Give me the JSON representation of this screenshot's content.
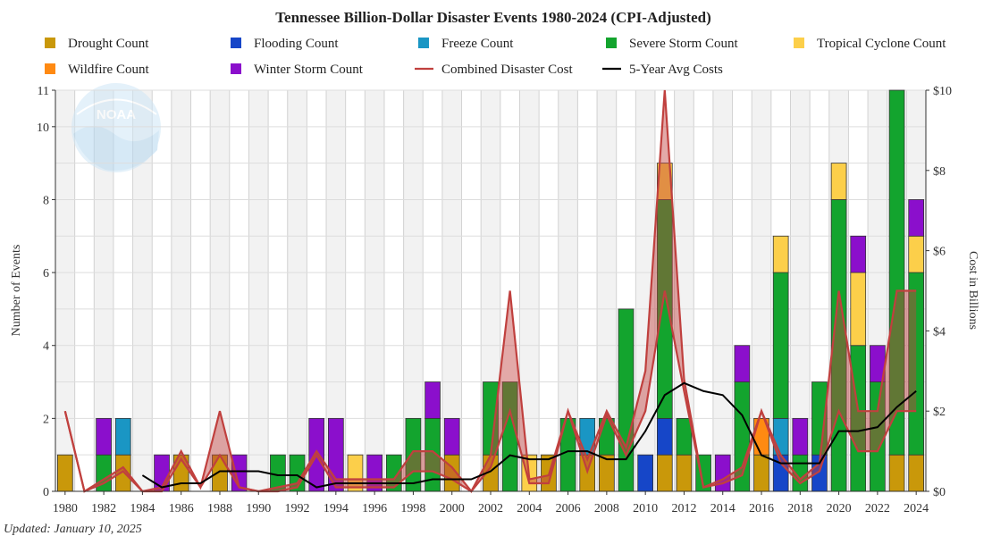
{
  "chart_data": {
    "type": "bar",
    "title": "Tennessee Billion-Dollar Disaster Events 1980-2024 (CPI-Adjusted)",
    "ylabel": "Number of Events",
    "y2label": "Cost in Billions",
    "ylim": [
      0,
      11
    ],
    "y2lim": [
      0,
      10
    ],
    "yticks": [
      0,
      2,
      4,
      6,
      8,
      10,
      11
    ],
    "y2ticks": [
      "$0",
      "$2",
      "$4",
      "$6",
      "$8",
      "$10"
    ],
    "updated": "Updated: January 10, 2025",
    "logo": "NOAA",
    "grid": true,
    "legend_position": "top",
    "x": [
      1980,
      1981,
      1982,
      1983,
      1984,
      1985,
      1986,
      1987,
      1988,
      1989,
      1990,
      1991,
      1992,
      1993,
      1994,
      1995,
      1996,
      1997,
      1998,
      1999,
      2000,
      2001,
      2002,
      2003,
      2004,
      2005,
      2006,
      2007,
      2008,
      2009,
      2010,
      2011,
      2012,
      2013,
      2014,
      2015,
      2016,
      2017,
      2018,
      2019,
      2020,
      2021,
      2022,
      2023,
      2024
    ],
    "xticks": [
      1980,
      1982,
      1984,
      1986,
      1988,
      1990,
      1992,
      1994,
      1996,
      1998,
      2000,
      2002,
      2004,
      2006,
      2008,
      2010,
      2012,
      2014,
      2016,
      2018,
      2020,
      2022,
      2024
    ],
    "series": [
      {
        "name": "Drought Count",
        "color": "#c9980a",
        "values": [
          1,
          0,
          0,
          1,
          0,
          0,
          1,
          0,
          1,
          0,
          0,
          0,
          0,
          0,
          0,
          0,
          0,
          0,
          0,
          0,
          1,
          0,
          1,
          0,
          0,
          1,
          0,
          1,
          1,
          0,
          0,
          1,
          1,
          0,
          0,
          0,
          1,
          0,
          0,
          0,
          0,
          0,
          0,
          1,
          1
        ]
      },
      {
        "name": "Flooding Count",
        "color": "#1646c8",
        "values": [
          0,
          0,
          0,
          0,
          0,
          0,
          0,
          0,
          0,
          0,
          0,
          0,
          0,
          0,
          0,
          0,
          0,
          0,
          0,
          0,
          0,
          0,
          0,
          0,
          0,
          0,
          0,
          0,
          0,
          0,
          1,
          1,
          0,
          0,
          0,
          0,
          0,
          1,
          0,
          1,
          0,
          0,
          0,
          0,
          0
        ]
      },
      {
        "name": "Freeze Count",
        "color": "#1a96c4",
        "values": [
          0,
          0,
          0,
          1,
          0,
          0,
          0,
          0,
          0,
          0,
          0,
          0,
          0,
          0,
          0,
          0,
          0,
          0,
          0,
          0,
          0,
          0,
          0,
          0,
          0,
          0,
          0,
          1,
          0,
          0,
          0,
          0,
          0,
          0,
          0,
          0,
          0,
          1,
          0,
          0,
          0,
          0,
          0,
          0,
          0
        ]
      },
      {
        "name": "Severe Storm Count",
        "color": "#13a42e",
        "values": [
          0,
          0,
          1,
          0,
          0,
          0,
          0,
          0,
          0,
          0,
          0,
          1,
          1,
          0,
          0,
          0,
          0,
          1,
          2,
          2,
          0,
          0,
          2,
          3,
          0,
          0,
          2,
          0,
          1,
          5,
          0,
          6,
          1,
          1,
          0,
          3,
          0,
          4,
          1,
          2,
          8,
          4,
          3,
          10,
          5
        ]
      },
      {
        "name": "Tropical Cyclone Count",
        "color": "#fccf4a",
        "values": [
          0,
          0,
          0,
          0,
          0,
          0,
          0,
          0,
          0,
          0,
          0,
          0,
          0,
          0,
          0,
          1,
          0,
          0,
          0,
          0,
          0,
          0,
          0,
          0,
          1,
          0,
          0,
          0,
          0,
          0,
          0,
          1,
          0,
          0,
          0,
          0,
          0,
          1,
          0,
          0,
          1,
          2,
          0,
          0,
          1
        ]
      },
      {
        "name": "Wildfire Count",
        "color": "#ff8a12",
        "values": [
          0,
          0,
          0,
          0,
          0,
          0,
          0,
          0,
          0,
          0,
          0,
          0,
          0,
          0,
          0,
          0,
          0,
          0,
          0,
          0,
          0,
          0,
          0,
          0,
          0,
          0,
          0,
          0,
          0,
          0,
          0,
          0,
          0,
          0,
          0,
          0,
          1,
          0,
          0,
          0,
          0,
          0,
          0,
          0,
          0
        ]
      },
      {
        "name": "Winter Storm Count",
        "color": "#8b0fcc",
        "values": [
          0,
          0,
          1,
          0,
          0,
          1,
          0,
          0,
          0,
          1,
          0,
          0,
          0,
          2,
          2,
          0,
          1,
          0,
          0,
          1,
          1,
          0,
          0,
          0,
          0,
          0,
          0,
          0,
          0,
          0,
          0,
          0,
          0,
          0,
          1,
          1,
          0,
          0,
          1,
          0,
          0,
          1,
          1,
          0,
          1
        ]
      }
    ],
    "cost_series": {
      "name": "Combined Disaster Cost",
      "color": "#c0403e",
      "low": [
        2.0,
        0,
        0.2,
        0.5,
        0,
        0,
        0.8,
        0.1,
        0.9,
        0.1,
        0,
        0,
        0.1,
        0.9,
        0.1,
        0.1,
        0.1,
        0.1,
        0.5,
        0.5,
        0.3,
        0,
        0.6,
        2.0,
        0.2,
        0.2,
        2.0,
        0.5,
        1.9,
        0.9,
        2.0,
        5.0,
        2.5,
        0.1,
        0.2,
        0.4,
        2.0,
        0.7,
        0.2,
        0.5,
        2.0,
        1.0,
        1.0,
        2.0,
        2.0
      ],
      "high": [
        2.0,
        0,
        0.3,
        0.6,
        0,
        0.1,
        1.0,
        0.1,
        2.0,
        0.1,
        0,
        0.1,
        0.2,
        1.0,
        0.3,
        0.3,
        0.3,
        0.3,
        1.0,
        1.0,
        0.6,
        0,
        0.9,
        5.0,
        0.3,
        0.4,
        2.0,
        0.8,
        2.0,
        1.1,
        3.0,
        10.0,
        2.8,
        0.1,
        0.3,
        0.6,
        2.0,
        0.9,
        0.3,
        0.7,
        5.0,
        2.0,
        2.0,
        5.0,
        5.0
      ]
    },
    "avg_series": {
      "name": "5-Year Avg Costs",
      "color": "#000000",
      "start_year": 1984,
      "values": [
        0.4,
        0.1,
        0.2,
        0.2,
        0.5,
        0.5,
        0.5,
        0.4,
        0.4,
        0.1,
        0.2,
        0.2,
        0.2,
        0.2,
        0.2,
        0.3,
        0.3,
        0.3,
        0.5,
        0.9,
        0.8,
        0.8,
        1.0,
        1.0,
        0.8,
        0.8,
        1.5,
        2.4,
        2.7,
        2.5,
        2.4,
        1.9,
        0.9,
        0.7,
        0.7,
        0.7,
        1.5,
        1.5,
        1.6,
        2.1,
        2.5
      ]
    }
  }
}
